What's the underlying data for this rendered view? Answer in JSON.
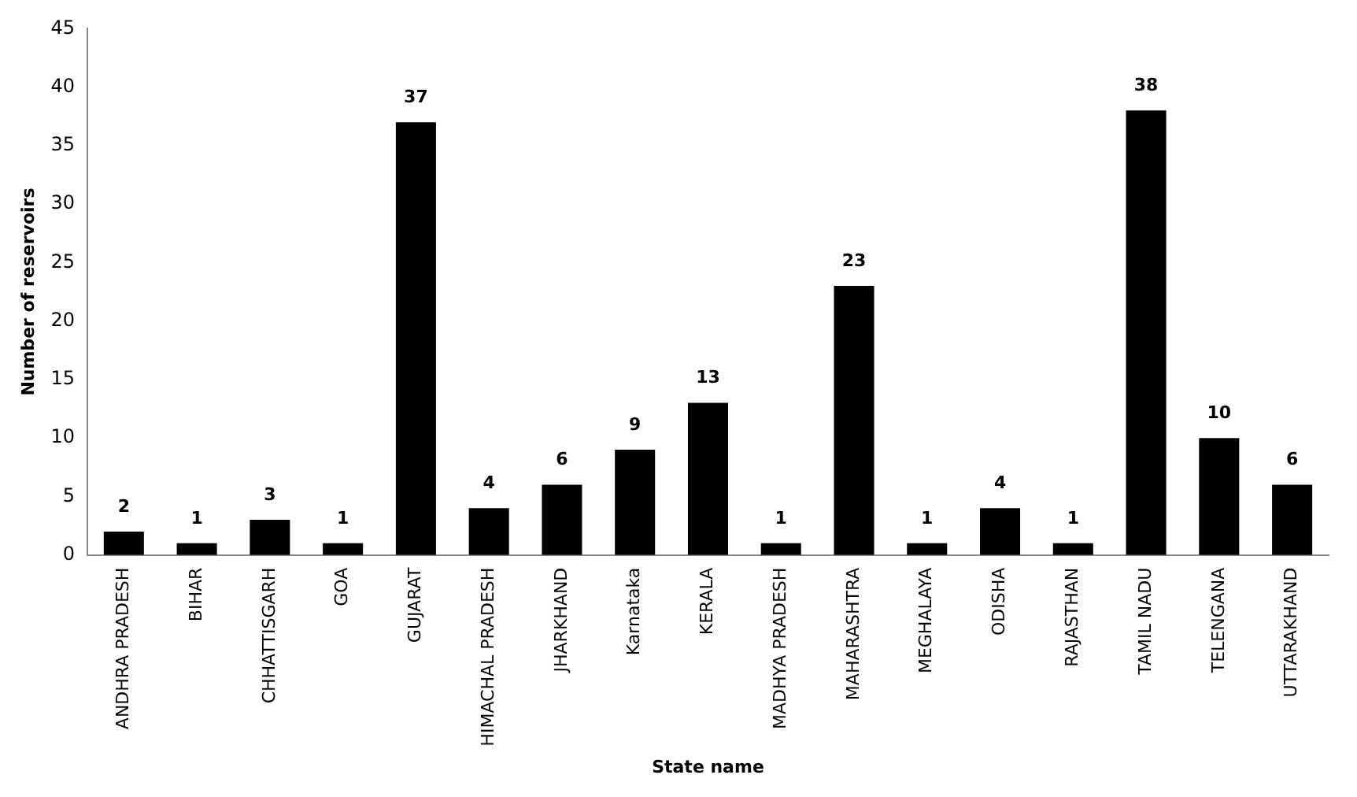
{
  "chart_data": {
    "type": "bar",
    "xlabel": "State name",
    "ylabel": "Number of reservoirs",
    "categories": [
      "ANDHRA PRADESH",
      "BIHAR",
      "CHHATTISGARH",
      "GOA",
      "GUJARAT",
      "HIMACHAL PRADESH",
      "JHARKHAND",
      "Karnataka",
      "KERALA",
      "MADHYA PRADESH",
      "MAHARASHTRA",
      "MEGHALAYA",
      "ODISHA",
      "RAJASTHAN",
      "TAMIL NADU",
      "TELENGANA",
      "UTTARAKHAND"
    ],
    "values": [
      2,
      1,
      3,
      1,
      37,
      4,
      6,
      9,
      13,
      1,
      23,
      1,
      4,
      1,
      38,
      10,
      6
    ],
    "color": "#000000",
    "ylim": [
      0,
      45
    ],
    "yticks": [
      0,
      5,
      10,
      15,
      20,
      25,
      30,
      35,
      40,
      45
    ],
    "grid": false,
    "legend": false,
    "data_labels": true
  }
}
